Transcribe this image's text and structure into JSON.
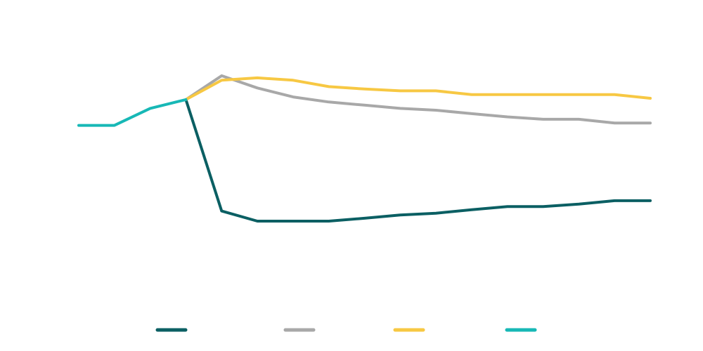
{
  "chart_data": {
    "type": "line",
    "title": "",
    "xlabel": "",
    "ylabel": "",
    "x": [
      0,
      1,
      2,
      3,
      4,
      5,
      6,
      7,
      8,
      9,
      10,
      11,
      12,
      13,
      14,
      15,
      16
    ],
    "ylim": [
      0,
      100
    ],
    "grid": false,
    "axes_visible": false,
    "legend": "bottom-center",
    "series": [
      {
        "name": "",
        "color": "#0b5f63",
        "x": [
          3,
          4,
          5,
          6,
          7,
          8,
          9,
          10,
          11,
          12,
          13,
          14,
          15,
          16
        ],
        "values": [
          70.4,
          28.4,
          24.6,
          24.6,
          24.6,
          25.7,
          26.9,
          27.6,
          28.9,
          30.1,
          30.1,
          31.0,
          32.3,
          32.3
        ]
      },
      {
        "name": "",
        "color": "#a8a8a8",
        "x": [
          3,
          4,
          5,
          6,
          7,
          8,
          9,
          10,
          11,
          12,
          13,
          14,
          15,
          16
        ],
        "values": [
          70.4,
          79.4,
          74.8,
          71.4,
          69.5,
          68.3,
          67.1,
          66.4,
          65.1,
          63.9,
          63.0,
          63.0,
          61.6,
          61.6
        ]
      },
      {
        "name": "",
        "color": "#f7c843",
        "x": [
          3,
          4,
          5,
          6,
          7,
          8,
          9,
          10,
          11,
          12,
          13,
          14,
          15,
          16
        ],
        "values": [
          70.4,
          77.7,
          78.6,
          77.7,
          75.3,
          74.4,
          73.7,
          73.7,
          72.3,
          72.3,
          72.3,
          72.3,
          72.3,
          70.9
        ]
      },
      {
        "name": "",
        "color": "#17b8b6",
        "x": [
          0,
          1,
          2,
          3
        ],
        "values": [
          60.7,
          60.7,
          67.1,
          70.4
        ]
      }
    ]
  }
}
